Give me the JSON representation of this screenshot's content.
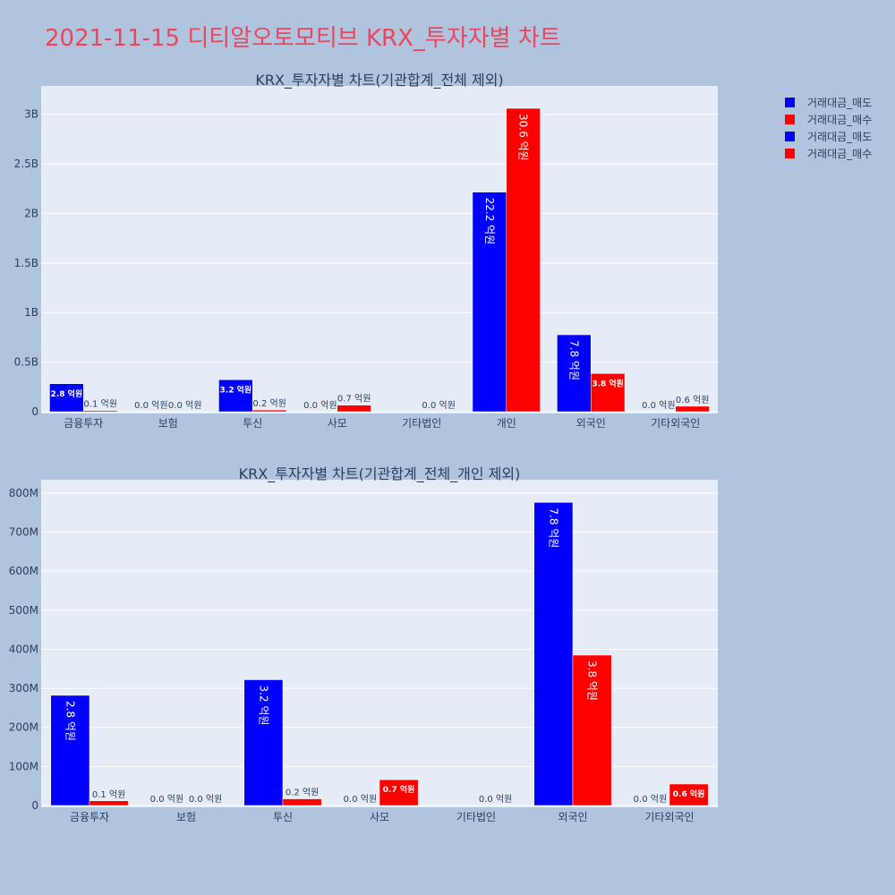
{
  "page": {
    "title": "2021-11-15 디티알오토모티브 KRX_투자자별 차트"
  },
  "legend": [
    {
      "name": "거래대금_매도",
      "color": "#0000ff"
    },
    {
      "name": "거래대금_매수",
      "color": "#ff0000"
    },
    {
      "name": "거래대금_매도",
      "color": "#0000ff"
    },
    {
      "name": "거래대금_매수",
      "color": "#ff0000"
    }
  ],
  "chart_data": [
    {
      "type": "bar",
      "title": "KRX_투자자별 차트(기관합계_전체 제외)",
      "categories": [
        "금융투자",
        "보험",
        "투신",
        "사모",
        "기타법인",
        "개인",
        "외국인",
        "기타외국인"
      ],
      "ylim": [
        0,
        3250000000
      ],
      "yticks": [
        {
          "value": 0,
          "label": "0"
        },
        {
          "value": 500000000,
          "label": "0.5B"
        },
        {
          "value": 1000000000,
          "label": "1B"
        },
        {
          "value": 1500000000,
          "label": "1.5B"
        },
        {
          "value": 2000000000,
          "label": "2B"
        },
        {
          "value": 2500000000,
          "label": "2.5B"
        },
        {
          "value": 3000000000,
          "label": "3B"
        }
      ],
      "grid": true,
      "legend_position": "top-right",
      "series": [
        {
          "name": "거래대금_매도",
          "color": "#0000ff",
          "values": [
            282000000,
            0,
            322000000,
            0,
            0,
            2215000000,
            776000000,
            0
          ],
          "labels": [
            "2.8 억원",
            "0.0 억원",
            "3.2 억원",
            "0.0 억원",
            "",
            "22.2 억원",
            "7.8 억원",
            "0.0 억원"
          ]
        },
        {
          "name": "거래대금_매수",
          "color": "#ff0000",
          "values": [
            12000000,
            0,
            17000000,
            66000000,
            0,
            3060000000,
            385000000,
            55000000
          ],
          "labels": [
            "0.1 억원",
            "0.0 억원",
            "0.2 억원",
            "0.7 억원",
            "0.0 억원",
            "30.6 억원",
            "3.8 억원",
            "0.6 억원"
          ]
        }
      ]
    },
    {
      "type": "bar",
      "title": "KRX_투자자별 차트(기관합계_전체_개인 제외)",
      "categories": [
        "금융투자",
        "보험",
        "투신",
        "사모",
        "기타법인",
        "외국인",
        "기타외국인"
      ],
      "ylim": [
        0,
        825000000
      ],
      "yticks": [
        {
          "value": 0,
          "label": "0"
        },
        {
          "value": 100000000,
          "label": "100M"
        },
        {
          "value": 200000000,
          "label": "200M"
        },
        {
          "value": 300000000,
          "label": "300M"
        },
        {
          "value": 400000000,
          "label": "400M"
        },
        {
          "value": 500000000,
          "label": "500M"
        },
        {
          "value": 600000000,
          "label": "600M"
        },
        {
          "value": 700000000,
          "label": "700M"
        },
        {
          "value": 800000000,
          "label": "800M"
        }
      ],
      "grid": true,
      "legend_position": "top-right",
      "series": [
        {
          "name": "거래대금_매도",
          "color": "#0000ff",
          "values": [
            282000000,
            0,
            322000000,
            0,
            0,
            776000000,
            0
          ],
          "labels": [
            "2.8 억원",
            "0.0 억원",
            "3.2 억원",
            "0.0 억원",
            "",
            "7.8 억원",
            "0.0 억원"
          ]
        },
        {
          "name": "거래대금_매수",
          "color": "#ff0000",
          "values": [
            12000000,
            0,
            17000000,
            66000000,
            0,
            385000000,
            55000000
          ],
          "labels": [
            "0.1 억원",
            "0.0 억원",
            "0.2 억원",
            "0.7 억원",
            "0.0 억원",
            "3.8 억원",
            "0.6 억원"
          ]
        }
      ]
    }
  ]
}
